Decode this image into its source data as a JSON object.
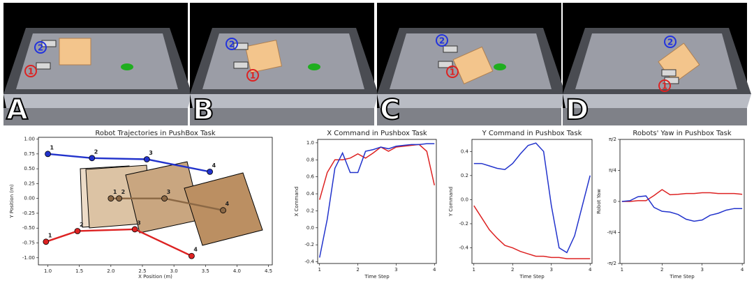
{
  "panels": [
    {
      "label": "A",
      "markers": [
        "2",
        "1"
      ]
    },
    {
      "label": "B",
      "markers": [
        "2",
        "1"
      ]
    },
    {
      "label": "C",
      "markers": [
        "2",
        "1"
      ]
    },
    {
      "label": "D",
      "markers": [
        "2",
        "1"
      ]
    }
  ],
  "chart_data": [
    {
      "type": "line",
      "title": "Robot Trajectories in PushBox Task",
      "xlabel": "X Position (m)",
      "ylabel": "Y Position (m)",
      "markers": true,
      "xlim": [
        0.85,
        4.56
      ],
      "ylim": [
        -1.12,
        1.03
      ],
      "xticks": [
        {
          "value": 1,
          "label": "1.0"
        },
        1.5,
        {
          "value": 2,
          "label": "2.0"
        },
        2.5,
        {
          "value": 3,
          "label": "3.0"
        },
        3.5,
        {
          "value": 4,
          "label": "4.0"
        },
        4.5
      ],
      "yticks": [
        {
          "value": -1,
          "label": "-1.00"
        },
        {
          "value": -0.75,
          "label": "-0.75"
        },
        {
          "value": -0.5,
          "label": "-0.50"
        },
        {
          "value": -0.25,
          "label": "-0.25"
        },
        {
          "value": 0,
          "label": "0.00"
        },
        {
          "value": 0.25,
          "label": "0.25"
        },
        {
          "value": 0.5,
          "label": "0.50"
        },
        {
          "value": 0.75,
          "label": "0.75"
        },
        {
          "value": 1,
          "label": "1.00"
        }
      ],
      "series": [
        {
          "color": "#8b6845",
          "x": [
            2.0,
            2.13,
            2.85,
            3.78
          ],
          "values": [
            0.0,
            0.0,
            0.0,
            -0.2
          ],
          "point_labels": [
            "1",
            "2",
            "3",
            "4"
          ]
        },
        {
          "color": "#2233cc",
          "x": [
            1.0,
            1.7,
            2.57,
            3.57
          ],
          "values": [
            0.75,
            0.68,
            0.66,
            0.45
          ],
          "point_labels": [
            "1",
            "2",
            "3",
            "4"
          ]
        },
        {
          "color": "#dd2222",
          "x": [
            0.97,
            1.47,
            2.38,
            3.28
          ],
          "values": [
            -0.73,
            -0.55,
            -0.52,
            -0.97
          ],
          "point_labels": [
            "1",
            "2",
            "3",
            "4"
          ]
        }
      ]
    },
    {
      "type": "line",
      "title": "X Command in Pushbox Task",
      "xlabel": "Time Step",
      "ylabel": "X Command",
      "xlim": [
        0.95,
        4.05
      ],
      "ylim": [
        -0.42,
        1.04
      ],
      "xticks": [
        1,
        2,
        3,
        4
      ],
      "yticks": [
        -0.4,
        -0.2,
        {
          "value": 0,
          "label": "0.0"
        },
        0.2,
        0.4,
        0.6,
        0.8,
        {
          "value": 1,
          "label": "1.0"
        }
      ],
      "x": [
        1,
        1.2,
        1.4,
        1.6,
        1.8,
        2,
        2.2,
        2.4,
        2.6,
        2.8,
        3,
        3.2,
        3.4,
        3.6,
        3.8,
        4
      ],
      "series": [
        {
          "color": "#dd2222",
          "values": [
            0.33,
            0.65,
            0.8,
            0.8,
            0.82,
            0.87,
            0.82,
            0.88,
            0.95,
            0.9,
            0.95,
            0.96,
            0.97,
            0.98,
            0.9,
            0.5
          ]
        },
        {
          "color": "#2233cc",
          "values": [
            -0.35,
            0.1,
            0.7,
            0.88,
            0.65,
            0.65,
            0.9,
            0.92,
            0.95,
            0.93,
            0.96,
            0.97,
            0.98,
            0.98,
            0.99,
            0.99
          ]
        }
      ]
    },
    {
      "type": "line",
      "title": "Y Command in Pushbox Task",
      "xlabel": "Time Step",
      "ylabel": "Y Command",
      "xlim": [
        0.95,
        4.05
      ],
      "ylim": [
        -0.53,
        0.5
      ],
      "xticks": [
        1,
        2,
        3,
        4
      ],
      "yticks": [
        -0.4,
        -0.2,
        {
          "value": 0,
          "label": "0.0"
        },
        0.2,
        0.4
      ],
      "x": [
        1,
        1.2,
        1.4,
        1.6,
        1.8,
        2,
        2.2,
        2.4,
        2.6,
        2.8,
        3,
        3.2,
        3.4,
        3.6,
        3.8,
        4
      ],
      "series": [
        {
          "color": "#dd2222",
          "values": [
            -0.05,
            -0.15,
            -0.25,
            -0.32,
            -0.38,
            -0.4,
            -0.43,
            -0.45,
            -0.47,
            -0.47,
            -0.48,
            -0.48,
            -0.49,
            -0.49,
            -0.49,
            -0.49
          ]
        },
        {
          "color": "#2233cc",
          "values": [
            0.3,
            0.3,
            0.28,
            0.26,
            0.25,
            0.3,
            0.38,
            0.45,
            0.47,
            0.4,
            -0.05,
            -0.4,
            -0.44,
            -0.3,
            -0.05,
            0.2
          ]
        }
      ]
    },
    {
      "type": "line",
      "title": "Robots' Yaw in Pushbox Task",
      "xlabel": "Time Step",
      "ylabel": "Robot Yaw",
      "xlim": [
        0.95,
        4.05
      ],
      "ylim": [
        -1.5708,
        1.5708
      ],
      "xticks": [
        1,
        2,
        3,
        4
      ],
      "yticks": [
        {
          "value": -1.5708,
          "label": "-π/2"
        },
        {
          "value": -0.7854,
          "label": "-π/4"
        },
        0,
        {
          "value": 0.7854,
          "label": "π/4"
        },
        {
          "value": 1.5708,
          "label": "π/2"
        }
      ],
      "x": [
        1,
        1.2,
        1.4,
        1.6,
        1.8,
        2,
        2.2,
        2.4,
        2.6,
        2.8,
        3,
        3.2,
        3.4,
        3.6,
        3.8,
        4
      ],
      "series": [
        {
          "color": "#dd2222",
          "values": [
            0,
            0,
            0.02,
            0.02,
            0.15,
            0.3,
            0.17,
            0.18,
            0.2,
            0.2,
            0.22,
            0.22,
            0.2,
            0.2,
            0.2,
            0.18
          ]
        },
        {
          "color": "#2233cc",
          "values": [
            0,
            0.02,
            0.12,
            0.14,
            -0.15,
            -0.25,
            -0.27,
            -0.33,
            -0.45,
            -0.5,
            -0.47,
            -0.35,
            -0.3,
            -0.22,
            -0.18,
            -0.18
          ]
        }
      ]
    }
  ]
}
